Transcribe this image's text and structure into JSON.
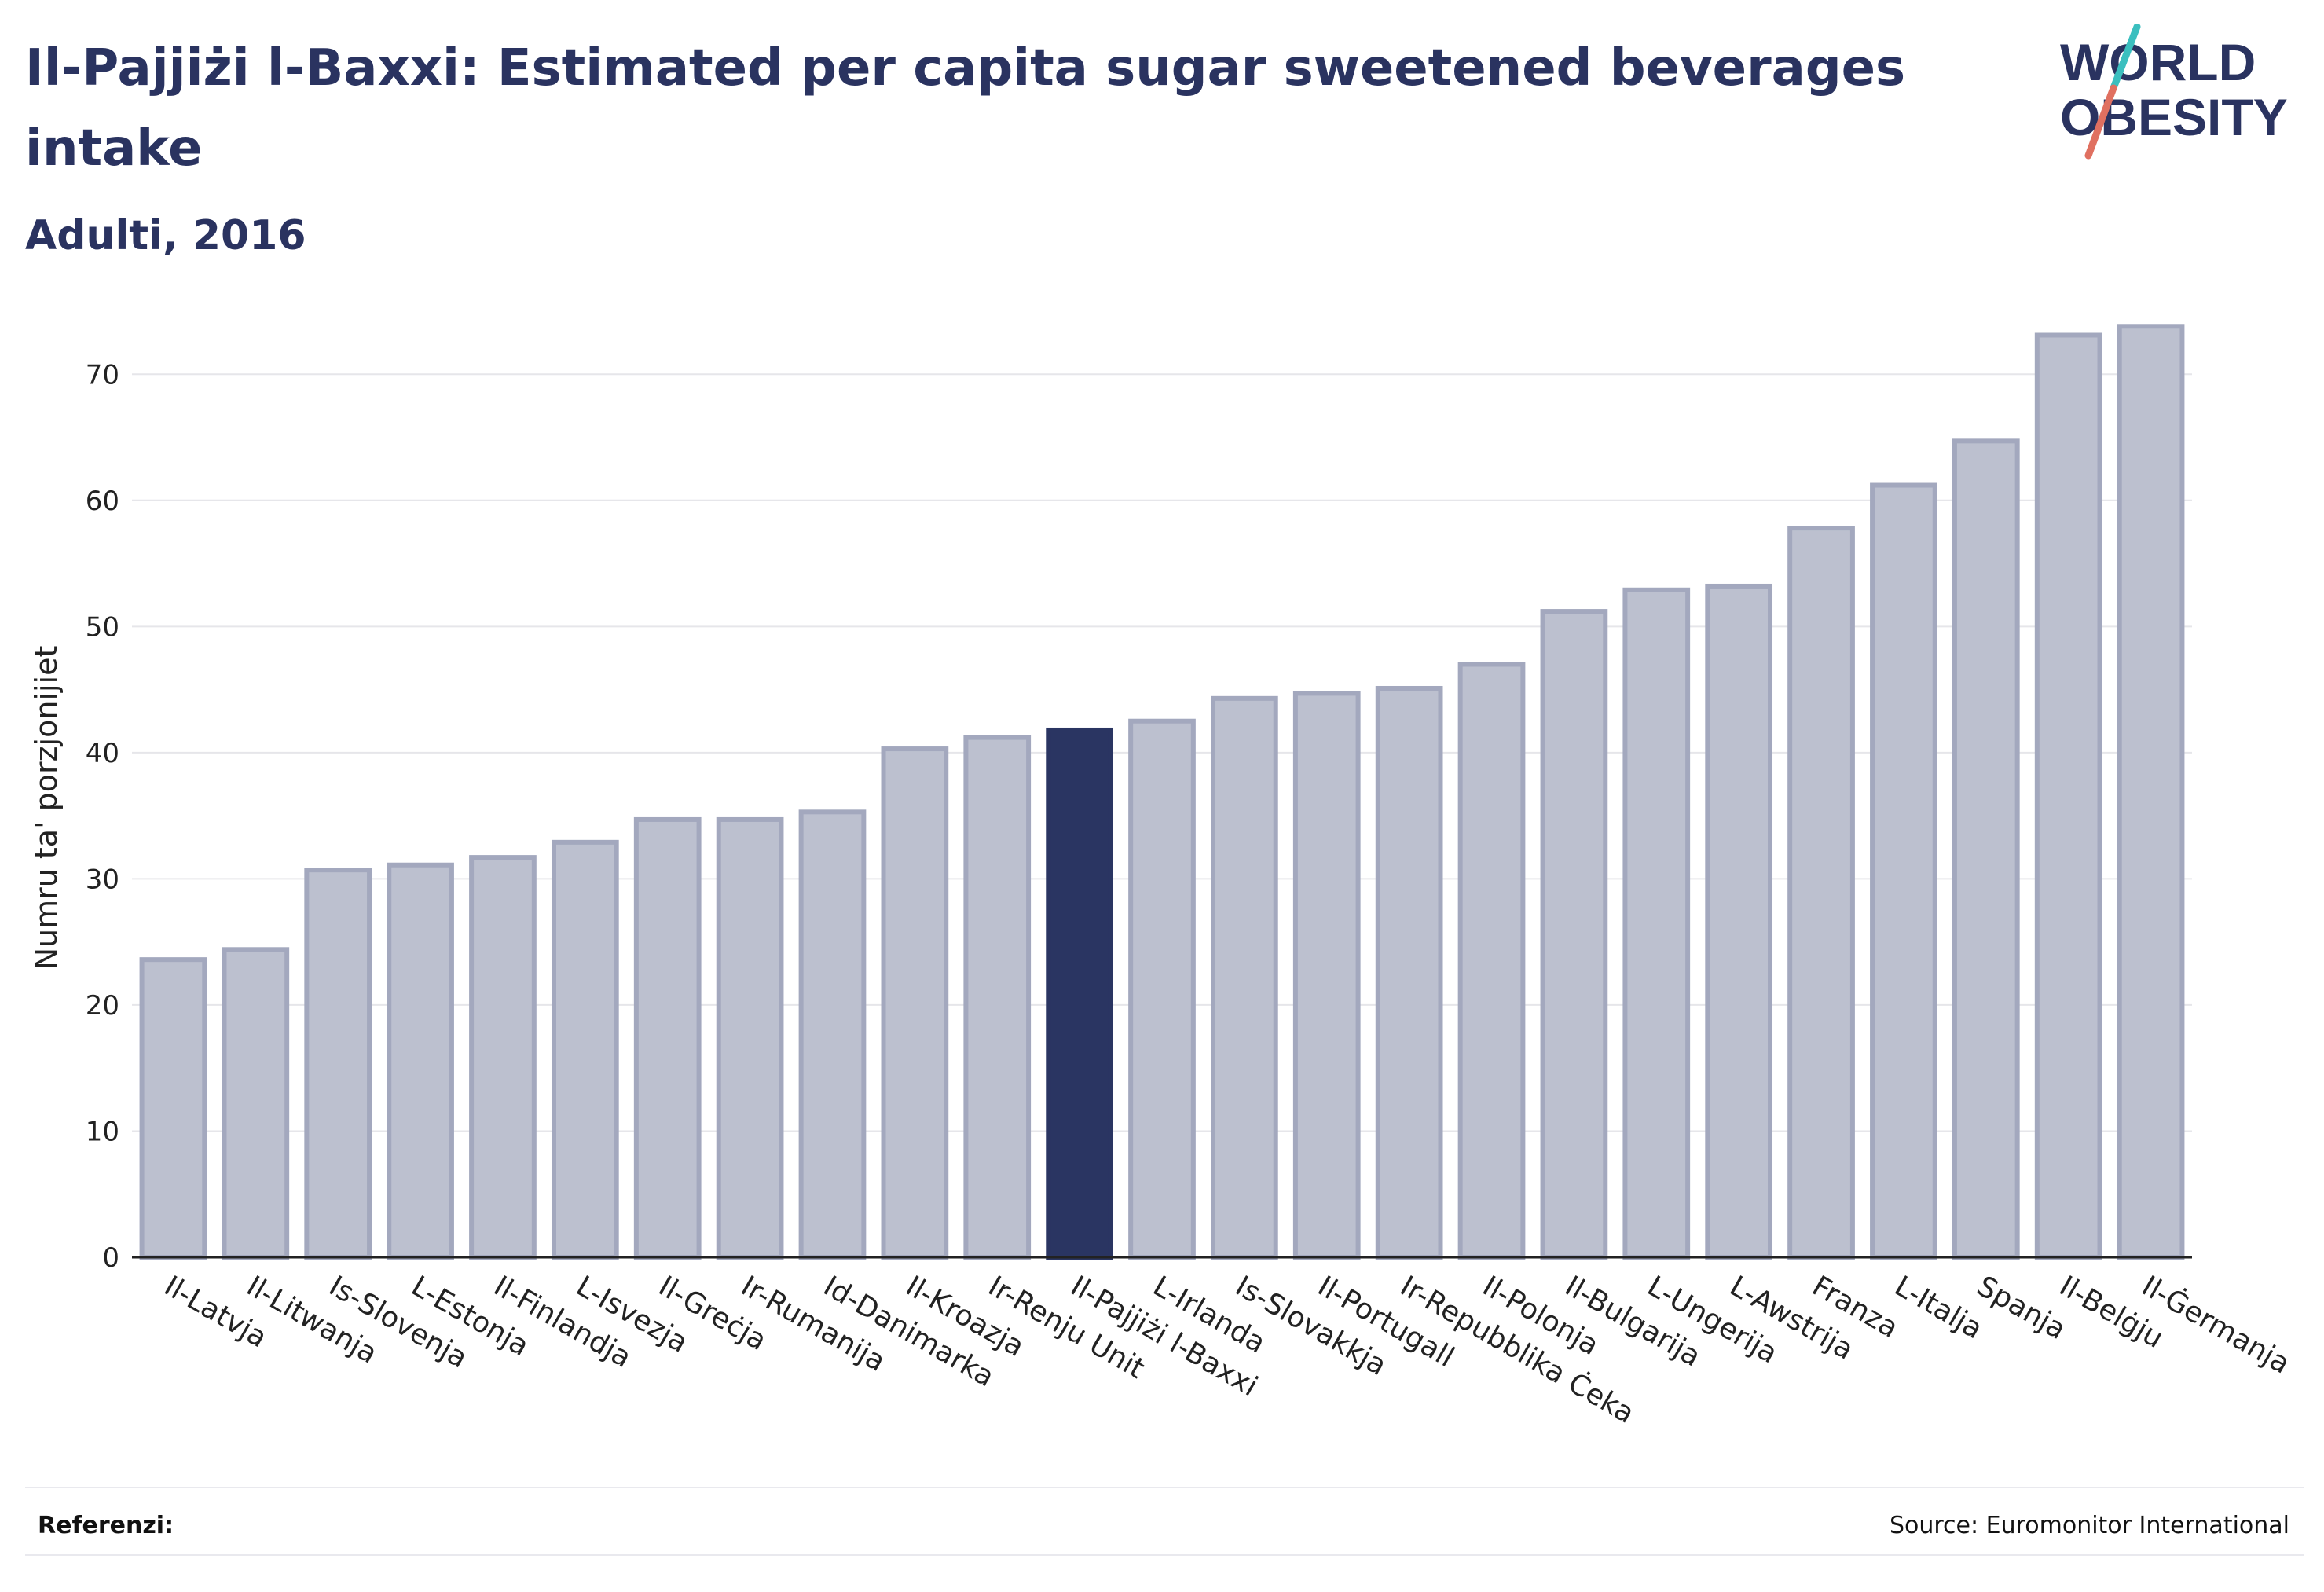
{
  "title": "Il-Pajjiżi l-Baxxi: Estimated per capita sugar sweetened beverages intake",
  "subtitle": "Adulti, 2016",
  "logo": {
    "line1": "WORLD",
    "line2": "OBESITY"
  },
  "footer": {
    "references_label": "Referenzi:",
    "source": "Source: Euromonitor International"
  },
  "colors": {
    "bar": "#bcc0cf",
    "bar_stroke": "#a3a8be",
    "highlight": "#2a3562",
    "text": "#2a3360",
    "grid": "#e6e6ea"
  },
  "chart_data": {
    "type": "bar",
    "ylabel": "Numru ta' porzjonijiet",
    "ylim": [
      0,
      75
    ],
    "yticks": [
      0,
      10,
      20,
      30,
      40,
      50,
      60,
      70
    ],
    "grid": true,
    "highlight": "Il-Pajjiżi l-Baxxi",
    "categories": [
      "Il-Latvja",
      "Il-Litwanja",
      "Is-Slovenja",
      "L-Estonja",
      "Il-Finlandja",
      "L-Isvezja",
      "Il-Greċja",
      "Ir-Rumanija",
      "Id-Danimarka",
      "Il-Kroazja",
      "Ir-Renju Unit",
      "Il-Pajjiżi l-Baxxi",
      "L-Irlanda",
      "Is-Slovakkja",
      "Il-Portugall",
      "Ir-Repubblika Ċeka",
      "Il-Polonja",
      "Il-Bulgarija",
      "L-Ungerija",
      "L-Awstrija",
      "Franza",
      "L-Italja",
      "Spanja",
      "Il-Belġju",
      "Il-Ġermanja"
    ],
    "values": [
      23.6,
      24.4,
      30.7,
      31.1,
      31.7,
      32.9,
      34.7,
      34.7,
      35.3,
      40.3,
      41.2,
      41.8,
      42.5,
      44.3,
      44.7,
      45.1,
      47.0,
      51.2,
      52.9,
      53.2,
      57.8,
      61.2,
      64.7,
      73.1,
      73.8
    ]
  }
}
